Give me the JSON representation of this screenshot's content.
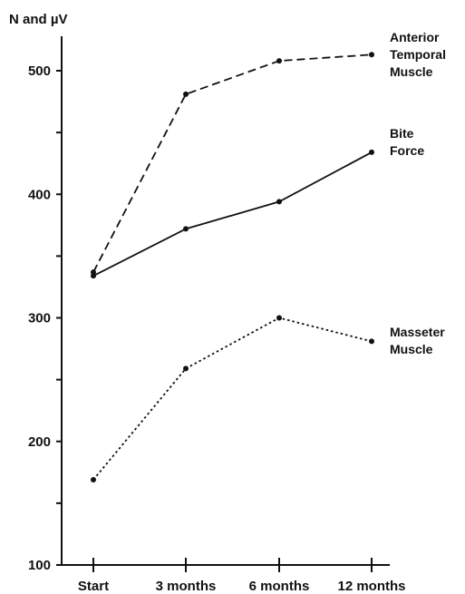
{
  "chart_data": {
    "type": "line",
    "ylabel": "N and µV",
    "categories": [
      "Start",
      "3 months",
      "6 months",
      "12 months"
    ],
    "ylim": [
      100,
      500
    ],
    "yticks": [
      100,
      200,
      300,
      400,
      500
    ],
    "grid": false,
    "series": [
      {
        "name": "Anterior Temporal Muscle",
        "label_lines": [
          "Anterior",
          "Temporal",
          "Muscle"
        ],
        "values": [
          337,
          481,
          508,
          513
        ],
        "line_style": "dashed"
      },
      {
        "name": "Bite Force",
        "label_lines": [
          "Bite",
          "Force"
        ],
        "values": [
          334,
          372,
          394,
          434
        ],
        "line_style": "solid"
      },
      {
        "name": "Masseter Muscle",
        "label_lines": [
          "Masseter",
          "Muscle"
        ],
        "values": [
          169,
          259,
          300,
          281
        ],
        "line_style": "dotted"
      }
    ]
  }
}
